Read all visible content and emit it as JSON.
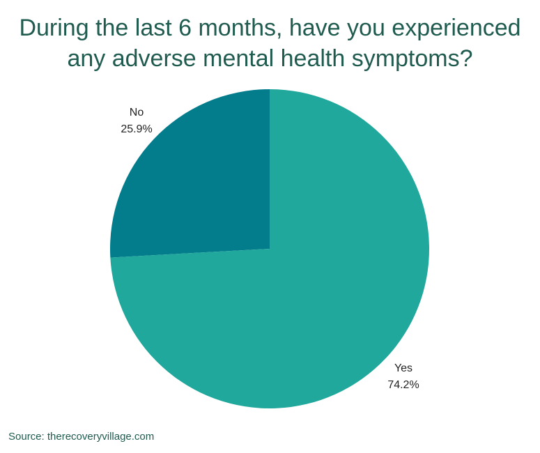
{
  "chart_data": {
    "type": "pie",
    "title_lines": [
      "During the last 6 months, have you experienced",
      "any adverse mental health symptoms?"
    ],
    "slices": [
      {
        "label": "No",
        "value_label": "25.9%",
        "value": 25.9,
        "color": "#037c8c"
      },
      {
        "label": "Yes",
        "value_label": "74.2%",
        "value": 74.2,
        "color": "#21a89c"
      }
    ]
  },
  "source": "Source: therecoveryvillage.com"
}
